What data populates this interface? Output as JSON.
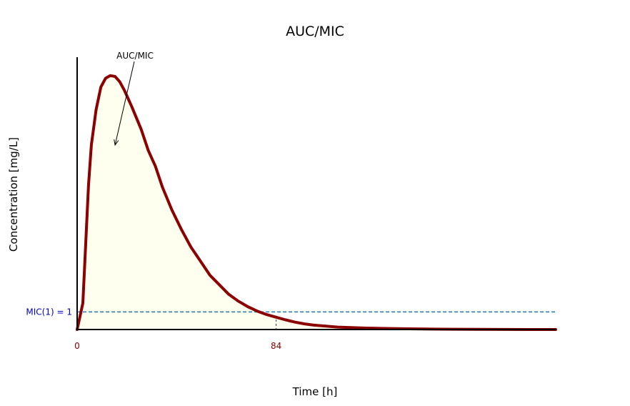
{
  "corner_mark": "' '",
  "chart_data": {
    "type": "area",
    "title": "AUC/MIC",
    "xlabel": "Time [h]",
    "ylabel": "Concentration [mg/L]",
    "xlim": [
      0,
      202
    ],
    "ylim": [
      0,
      15.5
    ],
    "x_ticks": [
      {
        "value": 0,
        "label": "0"
      },
      {
        "value": 84,
        "label": "84"
      }
    ],
    "grid": false,
    "mic": {
      "value": 1,
      "label": "MIC(1) = 1",
      "color": "#1f77b4",
      "label_color": "#0000cc"
    },
    "annotation": {
      "text": "AUC/MIC",
      "x": 16,
      "y": 10.5
    },
    "series": [
      {
        "color": "#8b0000",
        "fill": "#fffff0",
        "x": [
          0,
          2.4,
          4.8,
          6,
          8,
          10,
          12,
          14,
          16,
          18,
          20,
          23,
          27,
          30,
          33,
          36,
          40,
          44,
          48,
          52,
          56,
          60,
          64,
          68,
          72,
          76,
          80,
          84,
          88,
          92,
          96,
          100,
          110,
          120,
          130,
          140,
          150,
          160,
          170,
          180,
          190,
          202
        ],
        "values": [
          0,
          1.5,
          8.2,
          10.5,
          12.5,
          13.8,
          14.3,
          14.45,
          14.4,
          14.1,
          13.6,
          12.7,
          11.4,
          10.2,
          9.3,
          8.1,
          6.8,
          5.7,
          4.7,
          3.9,
          3.1,
          2.55,
          2.0,
          1.62,
          1.3,
          1.05,
          0.85,
          0.7,
          0.55,
          0.42,
          0.32,
          0.25,
          0.14,
          0.09,
          0.06,
          0.04,
          0.025,
          0.015,
          0.01,
          0.005,
          0.002,
          0
        ]
      }
    ]
  }
}
